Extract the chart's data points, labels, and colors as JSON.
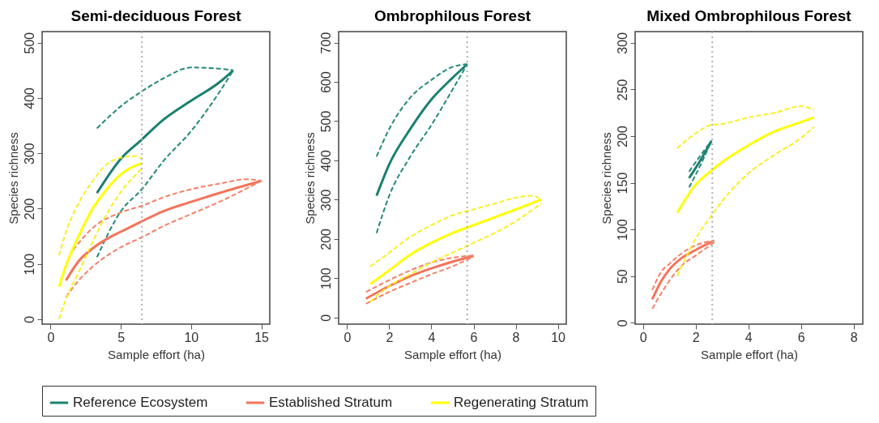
{
  "chart_data": [
    {
      "type": "line",
      "title": "Semi-deciduous Forest",
      "xlabel": "Sample effort (ha)",
      "ylabel": "Species richness",
      "xlim": [
        -0.6,
        15.6
      ],
      "ylim": [
        -9,
        520
      ],
      "xticks": [
        0,
        5,
        10,
        15
      ],
      "yticks": [
        0,
        100,
        200,
        300,
        400,
        500
      ],
      "legend": "bottom",
      "ref_lines": [
        {
          "axis": "x",
          "value": 6.5,
          "color": "#b0b0b0",
          "line_style": "dotted"
        }
      ],
      "series": [
        {
          "name": "Reference Ecosystem",
          "color": "#1b8070",
          "x": [
            3.3,
            5,
            6.5,
            8,
            10,
            12,
            13
          ],
          "values": [
            228,
            290,
            325,
            360,
            395,
            428,
            450
          ]
        },
        {
          "color": "#238a78",
          "line_style": "dashed",
          "x": [
            3.3,
            5,
            6.5,
            8,
            10,
            12,
            13
          ],
          "values": [
            345,
            385,
            412,
            435,
            455,
            453,
            450
          ]
        },
        {
          "color": "#238a78",
          "line_style": "dashed",
          "x": [
            3.3,
            5,
            6.5,
            8,
            10,
            12,
            13
          ],
          "values": [
            112,
            195,
            235,
            285,
            340,
            410,
            450
          ]
        },
        {
          "name": "Established Stratum",
          "color": "#f4735a",
          "x": [
            1.1,
            2,
            3,
            4,
            5,
            6.5,
            8,
            10,
            12,
            15
          ],
          "values": [
            70,
            105,
            128,
            145,
            158,
            177,
            195,
            212,
            228,
            250
          ]
        },
        {
          "color": "#f58068",
          "line_style": "dashed",
          "x": [
            1.6,
            3,
            5,
            6.5,
            8,
            10,
            12,
            14,
            15
          ],
          "values": [
            125,
            165,
            193,
            205,
            220,
            235,
            245,
            253,
            250
          ]
        },
        {
          "color": "#f58068",
          "line_style": "dashed",
          "x": [
            1.1,
            2,
            3,
            5,
            6.5,
            8,
            10,
            12,
            15
          ],
          "values": [
            40,
            70,
            95,
            130,
            148,
            168,
            190,
            212,
            250
          ]
        },
        {
          "name": "Regenerating Stratum",
          "color": "#ffff00",
          "x": [
            0.6,
            1,
            2,
            3,
            4,
            5,
            6.5
          ],
          "values": [
            58,
            90,
            150,
            200,
            235,
            262,
            282
          ]
        },
        {
          "color": "#f8f020",
          "line_style": "dashed",
          "x": [
            0.6,
            1,
            2,
            3,
            4,
            5,
            6,
            6.5
          ],
          "values": [
            115,
            150,
            210,
            250,
            280,
            292,
            295,
            290
          ]
        },
        {
          "color": "#f8f020",
          "line_style": "dashed",
          "x": [
            0.6,
            1,
            2,
            3,
            4,
            5,
            6.5
          ],
          "values": [
            0,
            30,
            85,
            140,
            190,
            230,
            272
          ]
        }
      ]
    },
    {
      "type": "line",
      "title": "Ombrophilous Forest",
      "xlabel": "Sample effort (ha)",
      "ylabel": "Species richness",
      "xlim": [
        -0.4,
        10.4
      ],
      "ylim": [
        -17,
        728
      ],
      "xticks": [
        0,
        2,
        4,
        6,
        8,
        10
      ],
      "yticks": [
        0,
        100,
        200,
        300,
        400,
        500,
        600,
        700
      ],
      "ref_lines": [
        {
          "axis": "x",
          "value": 5.7,
          "color": "#b0b0b0",
          "line_style": "dotted"
        }
      ],
      "series": [
        {
          "color": "#1b8070",
          "x": [
            1.4,
            2,
            3,
            4,
            5,
            5.7
          ],
          "values": [
            310,
            390,
            480,
            555,
            610,
            645
          ]
        },
        {
          "color": "#238a78",
          "line_style": "dashed",
          "x": [
            1.4,
            2,
            3,
            4,
            5,
            5.7
          ],
          "values": [
            410,
            480,
            560,
            605,
            638,
            645
          ]
        },
        {
          "color": "#238a78",
          "line_style": "dashed",
          "x": [
            1.4,
            2,
            3,
            4,
            5,
            5.7
          ],
          "values": [
            215,
            310,
            410,
            490,
            580,
            645
          ]
        },
        {
          "color": "#f4735a",
          "x": [
            0.9,
            2,
            3,
            4,
            5,
            6
          ],
          "values": [
            48,
            80,
            105,
            125,
            142,
            157
          ]
        },
        {
          "color": "#f58068",
          "line_style": "dashed",
          "x": [
            0.9,
            2,
            3,
            4,
            5,
            6
          ],
          "values": [
            65,
            95,
            120,
            140,
            152,
            158
          ]
        },
        {
          "color": "#f58068",
          "line_style": "dashed",
          "x": [
            0.9,
            2,
            3,
            4,
            5,
            6
          ],
          "values": [
            35,
            65,
            88,
            110,
            130,
            155
          ]
        },
        {
          "color": "#ffff00",
          "x": [
            1.1,
            2,
            3,
            4,
            5,
            6,
            7,
            8,
            9.2
          ],
          "values": [
            85,
            120,
            160,
            190,
            215,
            235,
            255,
            275,
            300
          ]
        },
        {
          "color": "#f8f020",
          "line_style": "dashed",
          "x": [
            1.1,
            2,
            3,
            4,
            5,
            6,
            7,
            8,
            8.8,
            9.2
          ],
          "values": [
            130,
            165,
            205,
            235,
            260,
            275,
            290,
            305,
            310,
            300
          ]
        },
        {
          "color": "#f8f020",
          "line_style": "dashed",
          "x": [
            1.1,
            2,
            3,
            4,
            5,
            6,
            7,
            8,
            9.2
          ],
          "values": [
            40,
            80,
            110,
            140,
            165,
            190,
            215,
            245,
            290
          ]
        }
      ]
    },
    {
      "type": "line",
      "title": "Mixed Ombrophilous Forest",
      "xlabel": "Sample effort (ha)",
      "ylabel": "Species richness",
      "xlim": [
        -0.3,
        8.35
      ],
      "ylim": [
        -1.5,
        312
      ],
      "xticks": [
        0,
        2,
        4,
        6,
        8
      ],
      "yticks": [
        0,
        50,
        100,
        150,
        200,
        250,
        300
      ],
      "ref_lines": [
        {
          "axis": "x",
          "value": 2.63,
          "color": "#b0b0b0",
          "line_style": "dotted"
        }
      ],
      "series": [
        {
          "color": "#1b8070",
          "x": [
            1.75,
            2.2,
            2.6
          ],
          "values": [
            155,
            175,
            195
          ]
        },
        {
          "color": "#238a78",
          "line_style": "dashed",
          "x": [
            1.75,
            2.2,
            2.6
          ],
          "values": [
            162,
            180,
            195
          ]
        },
        {
          "color": "#238a78",
          "line_style": "dashed",
          "x": [
            1.75,
            2.2,
            2.6
          ],
          "values": [
            145,
            170,
            195
          ]
        },
        {
          "color": "#f4735a",
          "x": [
            0.35,
            0.7,
            1,
            1.5,
            2,
            2.7
          ],
          "values": [
            25,
            45,
            57,
            70,
            78,
            88
          ]
        },
        {
          "color": "#f58068",
          "line_style": "dashed",
          "x": [
            0.35,
            0.7,
            1,
            1.5,
            2,
            2.7
          ],
          "values": [
            35,
            55,
            63,
            75,
            83,
            88
          ]
        },
        {
          "color": "#f58068",
          "line_style": "dashed",
          "x": [
            0.35,
            0.7,
            1,
            1.5,
            2,
            2.7
          ],
          "values": [
            15,
            32,
            45,
            62,
            72,
            86
          ]
        },
        {
          "color": "#ffff00",
          "x": [
            1.3,
            2,
            2.6,
            3,
            4,
            5,
            6,
            6.5
          ],
          "values": [
            118,
            148,
            163,
            172,
            190,
            205,
            215,
            220
          ]
        },
        {
          "color": "#f8f020",
          "line_style": "dashed",
          "x": [
            1.3,
            2,
            2.6,
            3,
            4,
            5,
            6,
            6.5
          ],
          "values": [
            187,
            203,
            212,
            213,
            220,
            225,
            232,
            228
          ]
        },
        {
          "color": "#f8f020",
          "line_style": "dashed",
          "x": [
            1.3,
            2,
            2.6,
            3,
            4,
            5,
            6,
            6.5
          ],
          "values": [
            50,
            90,
            115,
            130,
            160,
            180,
            198,
            210
          ]
        }
      ]
    }
  ]
}
